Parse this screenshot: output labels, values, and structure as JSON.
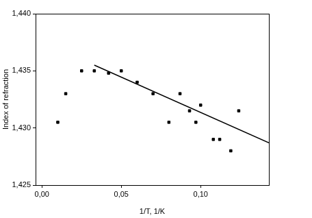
{
  "chart_data": {
    "type": "scatter",
    "x_label": "1/T, 1/K",
    "y_label": "Index of refraction",
    "xlim": [
      -0.004,
      0.143
    ],
    "ylim": [
      1.425,
      1.44
    ],
    "xticks": [
      {
        "value": 0,
        "label": "0,00"
      },
      {
        "value": 0.05,
        "label": "0,05"
      },
      {
        "value": 0.1,
        "label": "0,10"
      }
    ],
    "yticks": [
      {
        "value": 1.425,
        "label": "1,425"
      },
      {
        "value": 1.43,
        "label": "1,430"
      },
      {
        "value": 1.435,
        "label": "1,435"
      },
      {
        "value": 1.44,
        "label": "1,440"
      }
    ],
    "grid": false,
    "series": [
      {
        "type": "scatter",
        "marker": "square",
        "color": "#000000",
        "x": [
          0.01,
          0.015,
          0.025,
          0.033,
          0.042,
          0.05,
          0.06,
          0.07,
          0.08,
          0.087,
          0.093,
          0.097,
          0.1,
          0.108,
          0.112,
          0.119,
          0.124
        ],
        "values": [
          1.4305,
          1.433,
          1.435,
          1.435,
          1.4348,
          1.435,
          1.434,
          1.433,
          1.4305,
          1.433,
          1.4315,
          1.4305,
          1.432,
          1.429,
          1.429,
          1.428,
          1.4315
        ]
      },
      {
        "type": "line",
        "line_style": "solid",
        "color": "#000000",
        "x": [
          0.033,
          0.143
        ],
        "values": [
          1.4355,
          1.4287
        ]
      }
    ]
  }
}
